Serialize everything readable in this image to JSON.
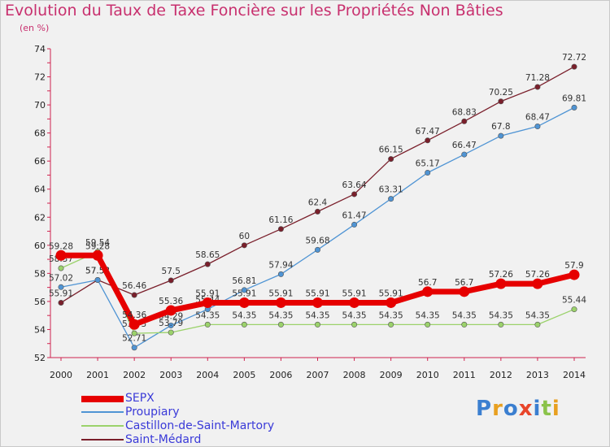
{
  "title": "Evolution du Taux de Taxe Foncière sur les Propriétés Non Bâties",
  "subtitle": "(en %)",
  "brand": "Proxiti",
  "chart_data": {
    "type": "line",
    "title": "Evolution du Taux de Taxe Foncière sur les Propriétés Non Bâties",
    "ylabel": "(en %)",
    "ylim": [
      52,
      74
    ],
    "yticks": [
      52,
      54,
      56,
      58,
      60,
      62,
      64,
      66,
      68,
      70,
      72,
      74
    ],
    "grid": false,
    "legend": "bottom-left",
    "x": [
      "2000",
      "2001",
      "2002",
      "2003",
      "2004",
      "2005",
      "2006",
      "2007",
      "2008",
      "2009",
      "2010",
      "2011",
      "2012",
      "2013",
      "2014"
    ],
    "series": [
      {
        "name": "Saint-Médard",
        "color": "#7a1f2b",
        "values": [
          55.91,
          57.53,
          56.46,
          57.5,
          58.65,
          60,
          61.16,
          62.4,
          63.64,
          66.15,
          67.47,
          68.83,
          70.25,
          71.28,
          72.72
        ],
        "labels": [
          "55.91",
          "57.53",
          "56.46",
          "57.5",
          "58.65",
          "60",
          "61.16",
          "62.4",
          "63.64",
          "66.15",
          "67.47",
          "68.83",
          "70.25",
          "71.28",
          "72.72"
        ]
      },
      {
        "name": "Proupiary",
        "color": "#4f94d4",
        "values": [
          57.02,
          57.53,
          52.71,
          54.29,
          55.44,
          56.81,
          57.94,
          59.68,
          61.47,
          63.31,
          65.17,
          66.47,
          67.8,
          68.47,
          69.81
        ],
        "labels": [
          "57.02",
          "57.53",
          "52.71",
          "54.29",
          "55.44",
          "56.81",
          "57.94",
          "59.68",
          "61.47",
          "63.31",
          "65.17",
          "66.47",
          "67.8",
          "68.47",
          "69.81"
        ]
      },
      {
        "name": "Castillon-de-Saint-Martory",
        "color": "#9bd26b",
        "values": [
          58.37,
          59.54,
          53.73,
          53.79,
          54.35,
          54.35,
          54.35,
          54.35,
          54.35,
          54.35,
          54.35,
          54.35,
          54.35,
          54.35,
          55.44
        ],
        "labels": [
          "58.37",
          "59.54",
          "53.73",
          "53.79",
          "54.35",
          "54.35",
          "54.35",
          "54.35",
          "54.35",
          "54.35",
          "54.35",
          "54.35",
          "54.35",
          "54.35",
          "55.44"
        ]
      },
      {
        "name": "SEPX",
        "color": "#e60000",
        "values": [
          59.28,
          59.28,
          54.36,
          55.36,
          55.91,
          55.91,
          55.91,
          55.91,
          55.91,
          55.91,
          56.7,
          56.7,
          57.26,
          57.26,
          57.9
        ],
        "labels": [
          "59.28",
          "59.28",
          "54.36",
          "55.36",
          "55.91",
          "55.91",
          "55.91",
          "55.91",
          "55.91",
          "55.91",
          "56.7",
          "56.7",
          "57.26",
          "57.26",
          "57.9"
        ]
      }
    ]
  },
  "legend": [
    {
      "name": "SEPX",
      "color": "#e60000"
    },
    {
      "name": "Proupiary",
      "color": "#4f94d4"
    },
    {
      "name": "Castillon-de-Saint-Martory",
      "color": "#9bd26b"
    },
    {
      "name": "Saint-Médard",
      "color": "#7a1f2b"
    }
  ],
  "colors": {
    "title": "#c8306e",
    "axis": "#d0234f",
    "legend_text": "#3a3ad8",
    "background": "#f1f1f1"
  }
}
